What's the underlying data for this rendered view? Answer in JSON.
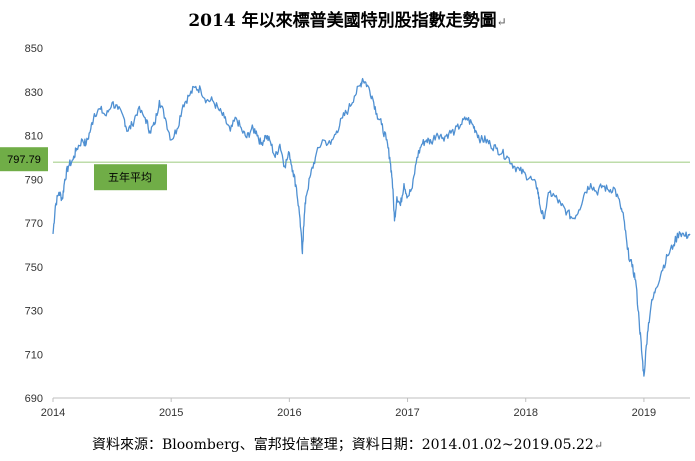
{
  "title": "2014 年以來標普美國特別股指數走勢圖",
  "source_note": "資料來源：Bloomberg、富邦投信整理；資料日期：2014.01.02~2019.05.22",
  "paragraph_mark": "↵",
  "colors": {
    "line": "#4f90d2",
    "reference_line": "#a9d18e",
    "label_box": "#70ad47",
    "axis": "#bfbfbf"
  },
  "chart_data": {
    "type": "line",
    "title": "2014 年以來標普美國特別股指數走勢圖",
    "xlabel": "",
    "ylabel": "",
    "ylim": [
      690,
      850
    ],
    "xlim": [
      2014.0,
      2019.39
    ],
    "y_ticks": [
      "850",
      "830",
      "810",
      "790",
      "770",
      "750",
      "730",
      "710",
      "690"
    ],
    "x_ticks": [
      "2014",
      "2015",
      "2016",
      "2017",
      "2018",
      "2019"
    ],
    "grid": false,
    "legend": "none",
    "reference_line": {
      "value": 797.79,
      "value_label": "797.79",
      "label": "五年平均"
    },
    "series": [
      {
        "x": [
          2014.0,
          2014.02,
          2014.05,
          2014.08,
          2014.1,
          2014.13,
          2014.17,
          2014.2,
          2014.25,
          2014.28,
          2014.32,
          2014.35,
          2014.4,
          2014.45,
          2014.5,
          2014.55,
          2014.6,
          2014.63,
          2014.67,
          2014.72,
          2014.78,
          2014.82,
          2014.86,
          2014.9,
          2014.95,
          2015.0,
          2015.05,
          2015.1,
          2015.15,
          2015.2,
          2015.25,
          2015.3,
          2015.35,
          2015.4,
          2015.45,
          2015.5,
          2015.55,
          2015.6,
          2015.64,
          2015.68,
          2015.72,
          2015.76,
          2015.8,
          2015.84,
          2015.88,
          2015.92,
          2015.96,
          2016.0,
          2016.03,
          2016.06,
          2016.09,
          2016.11,
          2016.12,
          2016.14,
          2016.18,
          2016.22,
          2016.28,
          2016.35,
          2016.4,
          2016.45,
          2016.5,
          2016.55,
          2016.6,
          2016.62,
          2016.66,
          2016.7,
          2016.74,
          2016.78,
          2016.82,
          2016.85,
          2016.87,
          2016.89,
          2016.91,
          2016.94,
          2016.97,
          2017.0,
          2017.04,
          2017.08,
          2017.12,
          2017.16,
          2017.2,
          2017.25,
          2017.3,
          2017.35,
          2017.4,
          2017.45,
          2017.5,
          2017.55,
          2017.58,
          2017.62,
          2017.66,
          2017.7,
          2017.75,
          2017.8,
          2017.85,
          2017.9,
          2017.95,
          2018.0,
          2018.05,
          2018.1,
          2018.12,
          2018.15,
          2018.2,
          2018.25,
          2018.3,
          2018.35,
          2018.4,
          2018.45,
          2018.5,
          2018.55,
          2018.6,
          2018.65,
          2018.7,
          2018.75,
          2018.8,
          2018.83,
          2018.86,
          2018.9,
          2018.93,
          2018.96,
          2018.98,
          2019.0,
          2019.03,
          2019.06,
          2019.1,
          2019.15,
          2019.2,
          2019.25,
          2019.3,
          2019.35,
          2019.39
        ],
        "values": [
          765,
          778,
          784,
          781,
          790,
          796,
          799,
          804,
          808,
          806,
          813,
          820,
          822,
          819,
          825,
          822,
          818,
          812,
          815,
          822,
          818,
          812,
          815,
          826,
          818,
          808,
          813,
          824,
          828,
          832,
          831,
          826,
          826,
          822,
          818,
          812,
          818,
          812,
          809,
          813,
          812,
          806,
          810,
          807,
          800,
          806,
          796,
          802,
          794,
          786,
          772,
          756,
          768,
          782,
          792,
          800,
          808,
          806,
          812,
          818,
          822,
          828,
          833,
          836,
          833,
          828,
          820,
          815,
          808,
          800,
          790,
          771,
          782,
          778,
          788,
          782,
          786,
          800,
          806,
          808,
          807,
          811,
          809,
          811,
          812,
          815,
          818,
          815,
          812,
          808,
          808,
          806,
          804,
          802,
          800,
          796,
          794,
          792,
          790,
          786,
          778,
          772,
          784,
          782,
          778,
          775,
          772,
          776,
          784,
          788,
          784,
          787,
          785,
          786,
          778,
          772,
          758,
          750,
          744,
          725,
          712,
          700,
          720,
          732,
          740,
          748,
          755,
          760,
          766,
          764,
          765
        ]
      }
    ]
  }
}
